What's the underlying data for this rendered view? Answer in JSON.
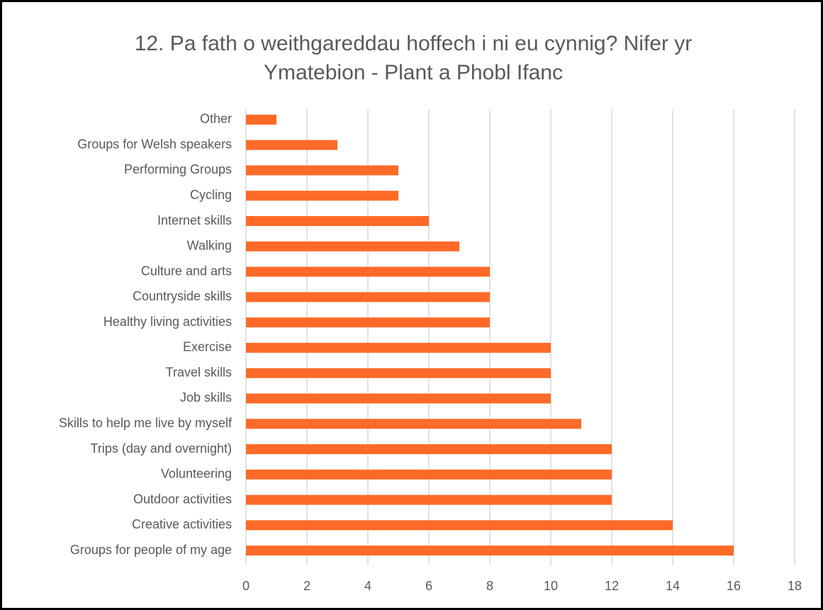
{
  "chart_data": {
    "type": "bar",
    "orientation": "horizontal",
    "title": "12. Pa fath o weithgareddau hoffech i ni eu cynnig? Nifer yr Ymatebion - Plant a Phobl Ifanc",
    "categories": [
      "Other",
      "Groups for Welsh speakers",
      "Performing Groups",
      "Cycling",
      "Internet skills",
      "Walking",
      "Culture and arts",
      "Countryside skills",
      "Healthy living activities",
      "Exercise",
      "Travel skills",
      "Job skills",
      "Skills to help me live by myself",
      "Trips (day and overnight)",
      "Volunteering",
      "Outdoor activities",
      "Creative activities",
      "Groups for people of my age"
    ],
    "values": [
      1,
      3,
      5,
      5,
      6,
      7,
      8,
      8,
      8,
      10,
      10,
      10,
      11,
      12,
      12,
      12,
      14,
      16
    ],
    "color": "#ff6a28",
    "xlim": [
      0,
      18
    ],
    "xticks": [
      0,
      2,
      4,
      6,
      8,
      10,
      12,
      14,
      16,
      18
    ],
    "grid": true
  }
}
